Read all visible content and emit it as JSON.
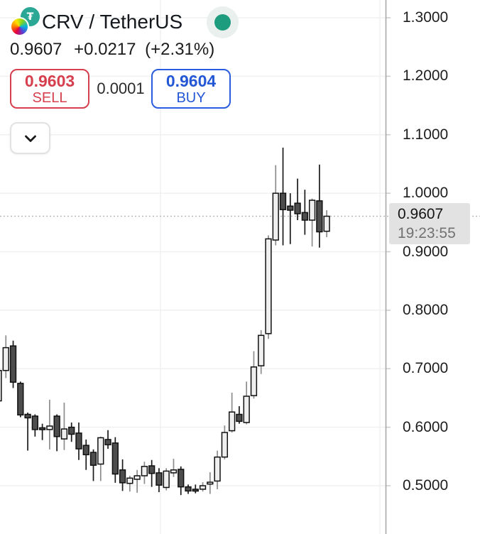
{
  "header": {
    "symbol_title": "CRV / TetherUS",
    "logo_glyph": "₮",
    "last_price": "0.9607",
    "change": "+0.0217",
    "change_pct": "(+2.31%)",
    "sell": {
      "price": "0.9603",
      "label": "SELL"
    },
    "spread": "0.0001",
    "buy": {
      "price": "0.9604",
      "label": "BUY"
    },
    "icons": {
      "expand": "chevron-down-icon",
      "status": "market-open-dot-icon"
    },
    "colors": {
      "sell_red": "#d6404e",
      "buy_blue": "#2b5ce0",
      "status_green": "#1e9c7e"
    }
  },
  "price_axis": {
    "labels": [
      "1.3000",
      "1.2000",
      "1.1000",
      "1.0000",
      "0.9000",
      "0.8000",
      "0.7000",
      "0.6000",
      "0.5000"
    ],
    "current_price_badge": {
      "price": "0.9607",
      "countdown": "19:23:55",
      "bg": "#e2e2e2"
    }
  },
  "chart_data": {
    "type": "candlestick",
    "title": "CRV / TetherUS",
    "ylabel_side": "right",
    "ylim": [
      0.46,
      1.33
    ],
    "y_ticks": [
      1.3,
      1.2,
      1.1,
      1.0,
      0.9,
      0.8,
      0.7,
      0.6,
      0.5
    ],
    "current_price": 0.9607,
    "countdown": "19:23:55",
    "grid": true,
    "colors": {
      "grid": "#f0f0f0",
      "axis_line": "#a8a8a8",
      "tick": "#cfcfcf",
      "dotted_price_line": "#b9b9b9",
      "up_fill": "#efefef",
      "down_fill": "#4d4d4d",
      "body_border": "#101010",
      "up_wick": "#8c8c8c",
      "down_wick": "#1a1a1a"
    },
    "candles": [
      [
        0.645,
        0.7,
        0.64,
        0.697
      ],
      [
        0.697,
        0.757,
        0.684,
        0.736
      ],
      [
        0.739,
        0.748,
        0.667,
        0.677
      ],
      [
        0.675,
        0.678,
        0.617,
        0.621
      ],
      [
        0.622,
        0.625,
        0.56,
        0.616
      ],
      [
        0.619,
        0.622,
        0.584,
        0.596
      ],
      [
        0.599,
        0.606,
        0.578,
        0.597
      ],
      [
        0.596,
        0.647,
        0.562,
        0.602
      ],
      [
        0.619,
        0.622,
        0.559,
        0.584
      ],
      [
        0.58,
        0.642,
        0.561,
        0.597
      ],
      [
        0.6,
        0.608,
        0.575,
        0.588
      ],
      [
        0.59,
        0.608,
        0.544,
        0.563
      ],
      [
        0.569,
        0.579,
        0.527,
        0.553
      ],
      [
        0.557,
        0.562,
        0.508,
        0.535
      ],
      [
        0.537,
        0.584,
        0.508,
        0.582
      ],
      [
        0.579,
        0.595,
        0.563,
        0.57
      ],
      [
        0.573,
        0.583,
        0.505,
        0.52
      ],
      [
        0.527,
        0.545,
        0.491,
        0.505
      ],
      [
        0.504,
        0.517,
        0.49,
        0.513
      ],
      [
        0.511,
        0.527,
        0.488,
        0.517
      ],
      [
        0.517,
        0.541,
        0.503,
        0.533
      ],
      [
        0.534,
        0.544,
        0.498,
        0.521
      ],
      [
        0.522,
        0.53,
        0.489,
        0.501
      ],
      [
        0.497,
        0.53,
        0.492,
        0.525
      ],
      [
        0.522,
        0.546,
        0.515,
        0.527
      ],
      [
        0.528,
        0.533,
        0.484,
        0.498
      ],
      [
        0.498,
        0.502,
        0.486,
        0.491
      ],
      [
        0.494,
        0.502,
        0.487,
        0.493
      ],
      [
        0.494,
        0.506,
        0.49,
        0.5
      ],
      [
        0.503,
        0.523,
        0.486,
        0.506
      ],
      [
        0.508,
        0.56,
        0.494,
        0.549
      ],
      [
        0.549,
        0.603,
        0.545,
        0.591
      ],
      [
        0.594,
        0.659,
        0.591,
        0.626
      ],
      [
        0.622,
        0.636,
        0.606,
        0.61
      ],
      [
        0.608,
        0.678,
        0.605,
        0.653
      ],
      [
        0.654,
        0.73,
        0.649,
        0.703
      ],
      [
        0.705,
        0.766,
        0.691,
        0.757
      ],
      [
        0.76,
        0.928,
        0.751,
        0.922
      ],
      [
        0.92,
        1.048,
        0.911,
        1.0
      ],
      [
        1.0,
        1.078,
        0.911,
        0.972
      ],
      [
        0.978,
        1.0,
        0.913,
        0.971
      ],
      [
        0.983,
        1.025,
        0.954,
        0.965
      ],
      [
        0.967,
        1.006,
        0.929,
        0.954
      ],
      [
        0.954,
        0.991,
        0.909,
        0.988
      ],
      [
        0.987,
        1.049,
        0.907,
        0.934
      ],
      [
        0.935,
        0.971,
        0.925,
        0.9607
      ]
    ]
  }
}
